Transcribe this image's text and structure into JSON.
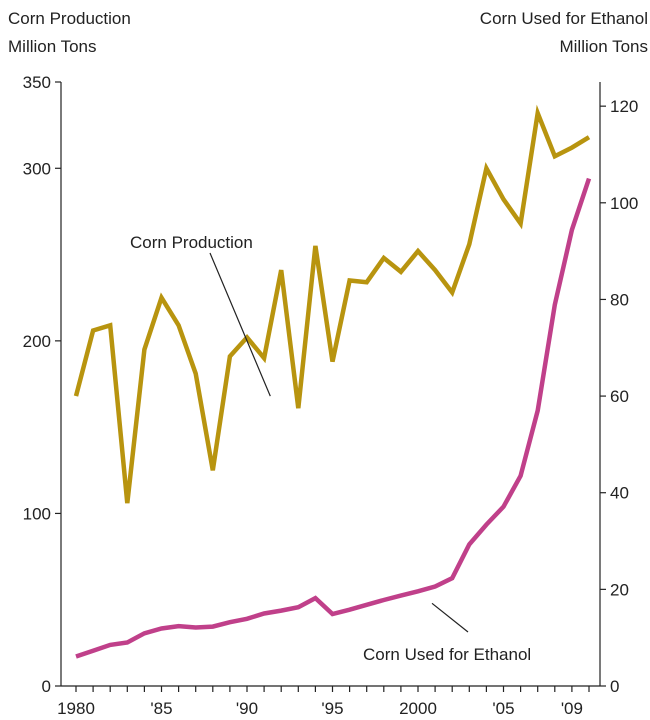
{
  "chart_data": {
    "type": "line",
    "x": [
      1980,
      1981,
      1982,
      1983,
      1984,
      1985,
      1986,
      1987,
      1988,
      1989,
      1990,
      1991,
      1992,
      1993,
      1994,
      1995,
      1996,
      1997,
      1998,
      1999,
      2000,
      2001,
      2002,
      2003,
      2004,
      2005,
      2006,
      2007,
      2008,
      2009,
      2010
    ],
    "x_tick_values": [
      1980,
      1985,
      1990,
      1995,
      2000,
      2005,
      2009
    ],
    "x_tick_labels": [
      "1980",
      "'85",
      "'90",
      "'95",
      "2000",
      "'05",
      "'09"
    ],
    "left_axis": {
      "title_line1": "Corn Production",
      "title_line2": "Million Tons",
      "ylim": [
        0,
        350
      ],
      "ticks": [
        0,
        100,
        200,
        300,
        350
      ]
    },
    "right_axis": {
      "title_line1": "Corn Used for Ethanol",
      "title_line2": "Million Tons",
      "ylim": [
        0,
        125
      ],
      "ticks": [
        0,
        20,
        40,
        60,
        80,
        100,
        120
      ]
    },
    "series": [
      {
        "name": "Corn Production",
        "axis": "left",
        "color": "#b8940f",
        "values": [
          168,
          206,
          209,
          106,
          195,
          225,
          209,
          181,
          125,
          191,
          202,
          190,
          241,
          161,
          255,
          188,
          235,
          234,
          248,
          240,
          252,
          241,
          228,
          256,
          300,
          282,
          268,
          332,
          307,
          312,
          318
        ]
      },
      {
        "name": "Corn Used for Ethanol",
        "axis": "right",
        "color": "#c0408a",
        "values": [
          6.1,
          7.3,
          8.5,
          9.0,
          10.9,
          11.9,
          12.4,
          12.1,
          12.3,
          13.2,
          13.9,
          15.0,
          15.6,
          16.3,
          18.2,
          14.9,
          15.8,
          16.8,
          17.8,
          18.7,
          19.6,
          20.6,
          22.3,
          29.3,
          33.4,
          37.1,
          43.5,
          57.0,
          78.9,
          94.4,
          105.0
        ]
      }
    ],
    "annotations": [
      {
        "text": "Corn Production",
        "series": "Corn Production",
        "point_year": 1993
      },
      {
        "text": "Corn Used for Ethanol",
        "series": "Corn Used for Ethanol",
        "point_year": 2000
      }
    ],
    "grid": false,
    "legend": "none"
  }
}
